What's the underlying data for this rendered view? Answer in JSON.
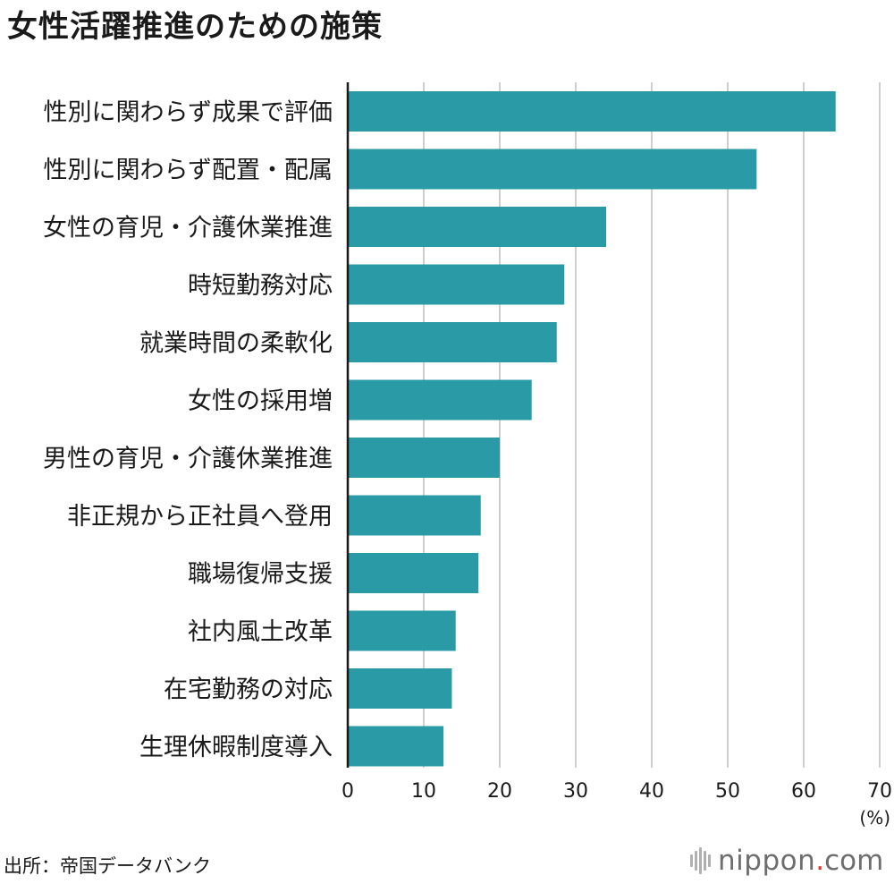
{
  "title": "女性活躍推進のための施策",
  "source": "出所：帝国データバンク",
  "brand": {
    "name": "nippon",
    "dot": ".",
    "tld": "com"
  },
  "colors": {
    "bar": "#2a9ba6",
    "grid": "#cfcfcf",
    "axis": "#1a1a1a",
    "brand_dot": "#e4332a"
  },
  "chart_data": {
    "type": "bar",
    "orientation": "horizontal",
    "categories": [
      "性別に関わらず成果で評価",
      "性別に関わらず配置・配属",
      "女性の育児・介護休業推進",
      "時短勤務対応",
      "就業時間の柔軟化",
      "女性の採用増",
      "男性の育児・介護休業推進",
      "非正規から正社員へ登用",
      "職場復帰支援",
      "社内風土改革",
      "在宅勤務の対応",
      "生理休暇制度導入"
    ],
    "values": [
      64.2,
      53.8,
      34.0,
      28.5,
      27.5,
      24.2,
      20.0,
      17.5,
      17.2,
      14.2,
      13.7,
      12.6
    ],
    "xlim": [
      0,
      70
    ],
    "ticks": [
      "0",
      "10",
      "20",
      "30",
      "40",
      "50",
      "60",
      "70"
    ],
    "unit_label": "(%)",
    "grid": true
  }
}
